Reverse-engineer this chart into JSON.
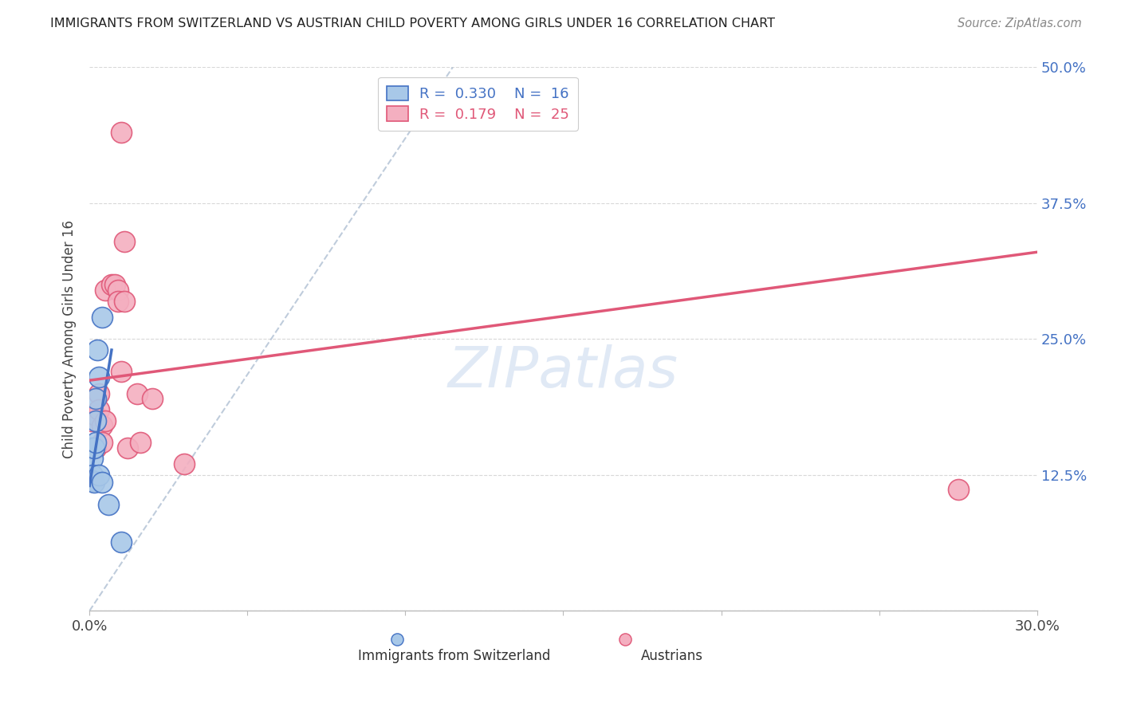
{
  "title": "IMMIGRANTS FROM SWITZERLAND VS AUSTRIAN CHILD POVERTY AMONG GIRLS UNDER 16 CORRELATION CHART",
  "source": "Source: ZipAtlas.com",
  "xlabel": "",
  "ylabel": "Child Poverty Among Girls Under 16",
  "legend_label1": "Immigrants from Switzerland",
  "legend_label2": "Austrians",
  "r1": 0.33,
  "n1": 16,
  "r2": 0.179,
  "n2": 25,
  "xlim": [
    0.0,
    0.3
  ],
  "ylim": [
    0.0,
    0.5
  ],
  "xticks": [
    0.0,
    0.05,
    0.1,
    0.15,
    0.2,
    0.25,
    0.3
  ],
  "yticks": [
    0.0,
    0.125,
    0.25,
    0.375,
    0.5
  ],
  "ytick_labels": [
    "",
    "12.5%",
    "25.0%",
    "37.5%",
    "50.0%"
  ],
  "xtick_labels": [
    "0.0%",
    "",
    "",
    "",
    "",
    "",
    "30.0%"
  ],
  "color_swiss": "#a8c8e8",
  "color_austrian": "#f4afc0",
  "color_swiss_line": "#4472c4",
  "color_austrian_line": "#e05878",
  "scatter_swiss": [
    [
      0.0005,
      0.15
    ],
    [
      0.001,
      0.14
    ],
    [
      0.001,
      0.125
    ],
    [
      0.001,
      0.12
    ],
    [
      0.0015,
      0.15
    ],
    [
      0.0015,
      0.118
    ],
    [
      0.002,
      0.195
    ],
    [
      0.002,
      0.175
    ],
    [
      0.002,
      0.155
    ],
    [
      0.0025,
      0.24
    ],
    [
      0.003,
      0.215
    ],
    [
      0.003,
      0.125
    ],
    [
      0.004,
      0.27
    ],
    [
      0.004,
      0.118
    ],
    [
      0.006,
      0.098
    ],
    [
      0.01,
      0.063
    ]
  ],
  "scatter_austrian": [
    [
      0.0005,
      0.175
    ],
    [
      0.001,
      0.15
    ],
    [
      0.001,
      0.12
    ],
    [
      0.002,
      0.18
    ],
    [
      0.002,
      0.15
    ],
    [
      0.003,
      0.2
    ],
    [
      0.003,
      0.185
    ],
    [
      0.004,
      0.17
    ],
    [
      0.004,
      0.155
    ],
    [
      0.005,
      0.175
    ],
    [
      0.005,
      0.295
    ],
    [
      0.007,
      0.3
    ],
    [
      0.008,
      0.3
    ],
    [
      0.009,
      0.295
    ],
    [
      0.009,
      0.285
    ],
    [
      0.01,
      0.22
    ],
    [
      0.01,
      0.44
    ],
    [
      0.011,
      0.34
    ],
    [
      0.011,
      0.285
    ],
    [
      0.012,
      0.15
    ],
    [
      0.015,
      0.2
    ],
    [
      0.016,
      0.155
    ],
    [
      0.02,
      0.195
    ],
    [
      0.03,
      0.135
    ],
    [
      0.275,
      0.112
    ]
  ],
  "swiss_line_x0": 0.0,
  "swiss_line_y0": 0.115,
  "swiss_line_x1": 0.007,
  "swiss_line_y1": 0.24,
  "austrian_line_x0": 0.0,
  "austrian_line_y0": 0.212,
  "austrian_line_x1": 0.3,
  "austrian_line_y1": 0.33,
  "ref_line_x0": 0.0,
  "ref_line_y0": 0.0,
  "ref_line_x1": 0.115,
  "ref_line_y1": 0.5,
  "background_color": "#ffffff",
  "grid_color": "#d8d8d8",
  "watermark_text": "ZIPatlas",
  "watermark_color": "#c8d8ee"
}
